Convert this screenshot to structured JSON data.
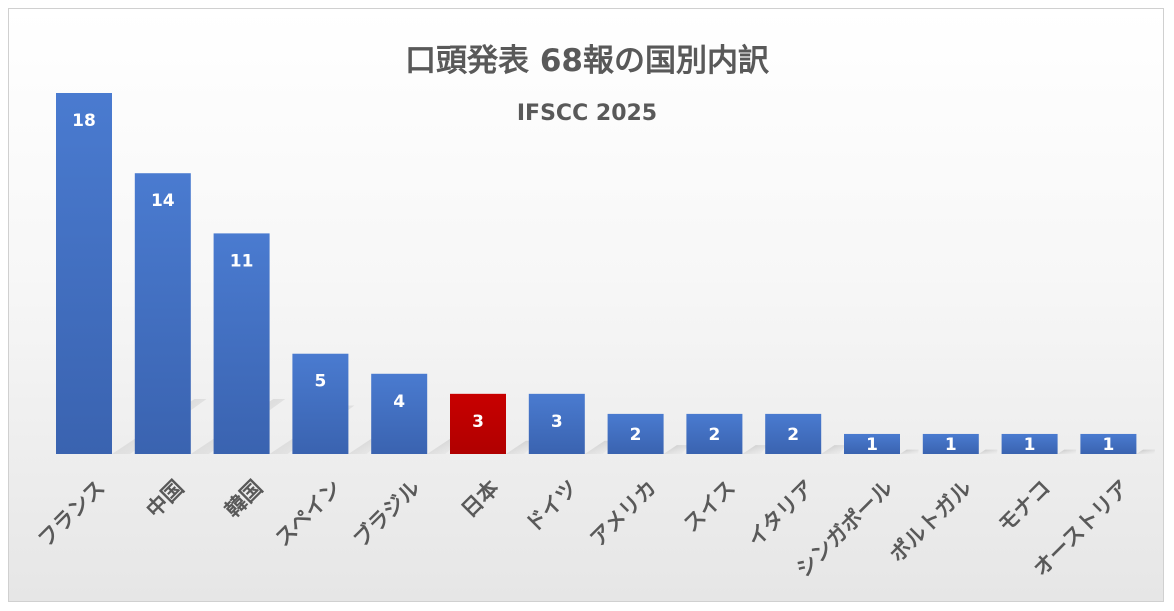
{
  "chart_data": {
    "type": "bar",
    "title": "口頭発表 68報の国別内訳",
    "subtitle": "IFSCC 2025",
    "categories": [
      "フランス",
      "中国",
      "韓国",
      "スペイン",
      "ブラジル",
      "日本",
      "ドイツ",
      "アメリカ",
      "スイス",
      "イタリア",
      "シンガポール",
      "ポルトガル",
      "モナコ",
      "オーストリア"
    ],
    "values": [
      18,
      14,
      11,
      5,
      4,
      3,
      3,
      2,
      2,
      2,
      1,
      1,
      1,
      1
    ],
    "ylim": [
      0,
      18
    ],
    "grid": false,
    "legend": "none",
    "highlight_category": "日本",
    "colors": {
      "bar": "#4472C4",
      "highlight": "#C00000",
      "text": "#595959",
      "label": "#ffffff"
    }
  }
}
